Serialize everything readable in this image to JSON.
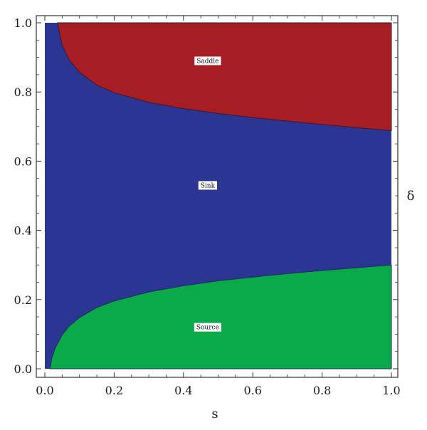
{
  "chart_data": {
    "type": "area",
    "title": "",
    "xlabel": "s",
    "ylabel": "δ",
    "xlim": [
      0,
      1
    ],
    "ylim": [
      0,
      1
    ],
    "x_ticks": [
      "0.0",
      "0.2",
      "0.4",
      "0.6",
      "0.8",
      "1.0"
    ],
    "y_ticks": [
      "0.0",
      "0.2",
      "0.4",
      "0.6",
      "0.8",
      "1.0"
    ],
    "grid": false,
    "regions": [
      {
        "name": "Saddle",
        "color": "#a61e24",
        "label_at": [
          0.47,
          0.89
        ],
        "boundary_below": [
          [
            0.036,
            1.0
          ],
          [
            0.05,
            0.935
          ],
          [
            0.07,
            0.893
          ],
          [
            0.1,
            0.857
          ],
          [
            0.15,
            0.82
          ],
          [
            0.2,
            0.798
          ],
          [
            0.3,
            0.77
          ],
          [
            0.4,
            0.752
          ],
          [
            0.5,
            0.738
          ],
          [
            0.6,
            0.726
          ],
          [
            0.7,
            0.716
          ],
          [
            0.8,
            0.706
          ],
          [
            0.9,
            0.697
          ],
          [
            1.0,
            0.688
          ]
        ]
      },
      {
        "name": "Sink",
        "color": "#2b3593",
        "label_at": [
          0.47,
          0.53
        ]
      },
      {
        "name": "Source",
        "color": "#0aaa4a",
        "label_at": [
          0.47,
          0.12
        ],
        "boundary_above": [
          [
            0.015,
            0.0
          ],
          [
            0.02,
            0.03
          ],
          [
            0.03,
            0.06
          ],
          [
            0.05,
            0.098
          ],
          [
            0.07,
            0.123
          ],
          [
            0.1,
            0.148
          ],
          [
            0.15,
            0.177
          ],
          [
            0.2,
            0.196
          ],
          [
            0.3,
            0.222
          ],
          [
            0.4,
            0.24
          ],
          [
            0.5,
            0.254
          ],
          [
            0.6,
            0.265
          ],
          [
            0.7,
            0.275
          ],
          [
            0.8,
            0.284
          ],
          [
            0.9,
            0.292
          ],
          [
            1.0,
            0.3
          ]
        ]
      }
    ]
  }
}
